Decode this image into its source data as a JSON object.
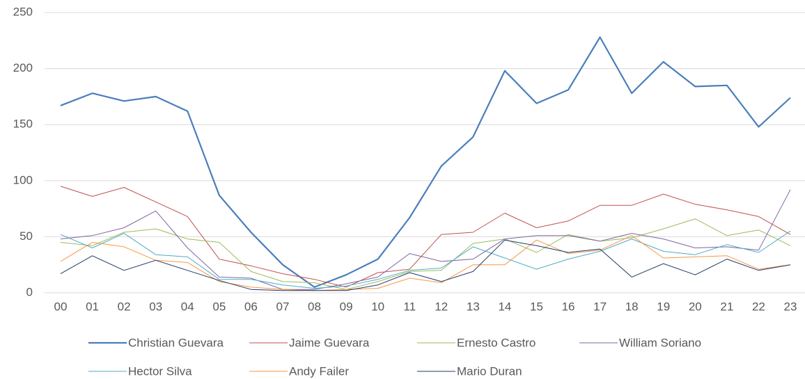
{
  "chart_data": {
    "type": "line",
    "categories": [
      "00",
      "01",
      "02",
      "03",
      "04",
      "05",
      "06",
      "07",
      "08",
      "09",
      "10",
      "11",
      "12",
      "13",
      "14",
      "15",
      "16",
      "17",
      "18",
      "19",
      "20",
      "21",
      "22",
      "23"
    ],
    "series": [
      {
        "name": "Christian Guevara",
        "color": "#4a7ebb",
        "values": [
          167,
          178,
          171,
          175,
          162,
          87,
          54,
          25,
          5,
          16,
          30,
          67,
          113,
          139,
          198,
          169,
          181,
          228,
          178,
          206,
          184,
          185,
          148,
          174
        ]
      },
      {
        "name": "Jaime Guevara",
        "color": "#c0504d",
        "values": [
          95,
          86,
          94,
          81,
          68,
          30,
          24,
          17,
          12,
          5,
          18,
          21,
          52,
          54,
          71,
          58,
          64,
          78,
          78,
          88,
          79,
          74,
          68,
          52
        ]
      },
      {
        "name": "Ernesto Castro",
        "color": "#9bbb59",
        "values": [
          45,
          42,
          54,
          57,
          48,
          45,
          19,
          10,
          9,
          3,
          10,
          19,
          20,
          44,
          48,
          36,
          52,
          46,
          49,
          57,
          66,
          51,
          56,
          42
        ]
      },
      {
        "name": "William Soriano",
        "color": "#8064a2",
        "values": [
          48,
          51,
          58,
          73,
          40,
          14,
          13,
          3,
          3,
          8,
          14,
          35,
          28,
          30,
          48,
          51,
          51,
          46,
          53,
          48,
          40,
          41,
          38,
          92
        ]
      },
      {
        "name": "Hector Silva",
        "color": "#4bacc6",
        "values": [
          52,
          40,
          53,
          34,
          32,
          12,
          12,
          7,
          4,
          6,
          12,
          20,
          22,
          41,
          31,
          21,
          30,
          37,
          48,
          37,
          34,
          43,
          36,
          55
        ]
      },
      {
        "name": "Andy Failer",
        "color": "#f79646",
        "values": [
          28,
          45,
          41,
          29,
          27,
          10,
          5,
          3,
          2,
          3,
          4,
          13,
          9,
          25,
          25,
          47,
          35,
          38,
          51,
          31,
          32,
          33,
          21,
          25
        ]
      },
      {
        "name": "Mario Duran",
        "color": "#1f3864",
        "values": [
          17,
          33,
          20,
          29,
          20,
          11,
          3,
          2,
          2,
          2,
          7,
          18,
          10,
          19,
          47,
          42,
          36,
          39,
          14,
          26,
          16,
          30,
          20,
          25
        ]
      }
    ],
    "ylim": [
      0,
      250
    ],
    "yticks": [
      0,
      50,
      100,
      150,
      200,
      250
    ],
    "grid": true
  }
}
